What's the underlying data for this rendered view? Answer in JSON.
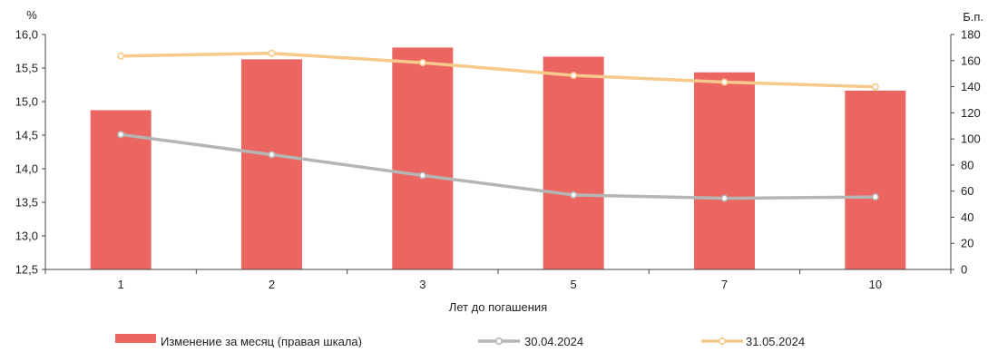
{
  "chart_data": {
    "type": "bar+line",
    "categories": [
      "1",
      "2",
      "3",
      "5",
      "7",
      "10"
    ],
    "xlabel": "Лет до погашения",
    "left_axis": {
      "unit": "%",
      "ylim": [
        12.5,
        16.0
      ],
      "ticks": [
        "16,0",
        "15,5",
        "15,0",
        "14,5",
        "14,0",
        "13,5",
        "13,0",
        "12,5"
      ]
    },
    "right_axis": {
      "unit": "Б.п.",
      "ylim": [
        0,
        180
      ],
      "ticks": [
        "180",
        "160",
        "140",
        "120",
        "100",
        "80",
        "60",
        "40",
        "20",
        "0"
      ]
    },
    "bars": {
      "name": "Изменение за месяц (правая шкала)",
      "axis": "right",
      "color": "#EC6661",
      "values": [
        122,
        161,
        170,
        163,
        151,
        137
      ]
    },
    "series": [
      {
        "name": "30.04.2024",
        "axis": "left",
        "color": "#B5B5B5",
        "values": [
          14.51,
          14.21,
          13.9,
          13.61,
          13.56,
          13.58
        ]
      },
      {
        "name": "31.05.2024",
        "axis": "left",
        "color": "#F5C98A",
        "values": [
          15.68,
          15.72,
          15.58,
          15.39,
          15.29,
          15.22
        ]
      }
    ],
    "grid": false,
    "legend_position": "bottom"
  }
}
